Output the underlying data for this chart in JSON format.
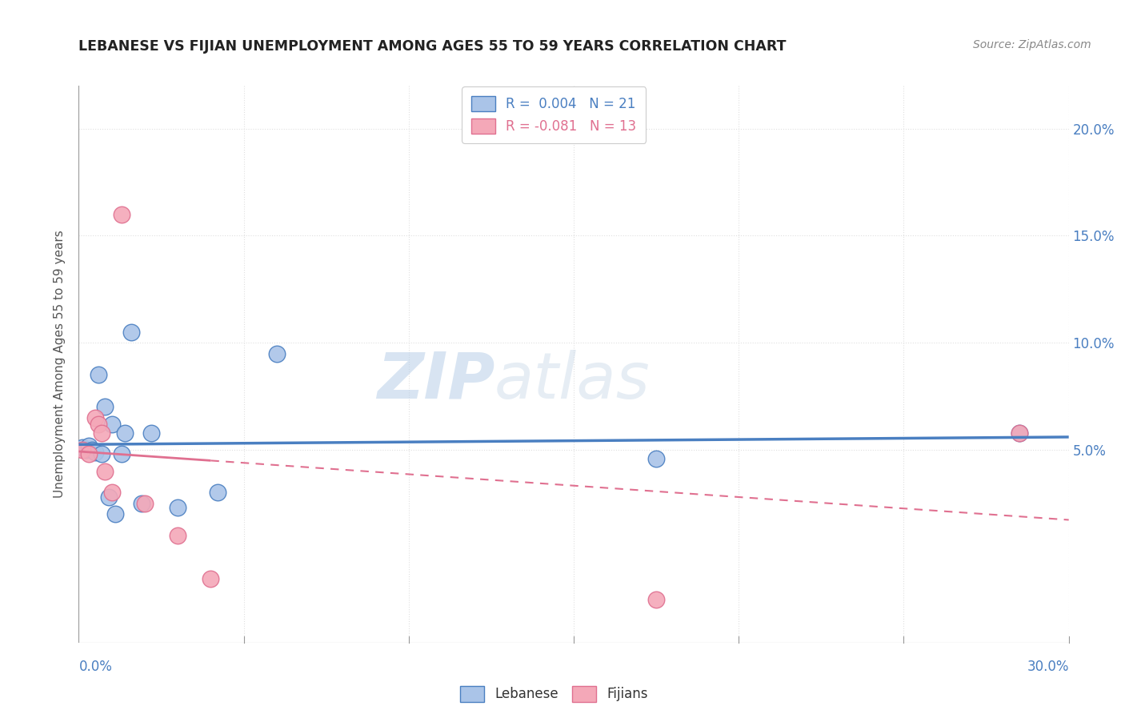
{
  "title": "LEBANESE VS FIJIAN UNEMPLOYMENT AMONG AGES 55 TO 59 YEARS CORRELATION CHART",
  "source": "Source: ZipAtlas.com",
  "ylabel": "Unemployment Among Ages 55 to 59 years",
  "xlim": [
    0.0,
    0.3
  ],
  "ylim": [
    -0.04,
    0.22
  ],
  "background_color": "#ffffff",
  "grid_color": "#e0e0e0",
  "leb_color": "#aac4e8",
  "fij_color": "#f4a8b8",
  "leb_line_color": "#4a7fc1",
  "fij_line_color": "#e07090",
  "watermark_zip": "ZIP",
  "watermark_atlas": "atlas",
  "lebanese_data_x": [
    0.001,
    0.002,
    0.003,
    0.004,
    0.005,
    0.006,
    0.007,
    0.008,
    0.009,
    0.01,
    0.011,
    0.013,
    0.014,
    0.016,
    0.019,
    0.022,
    0.03,
    0.042,
    0.06,
    0.175,
    0.285
  ],
  "lebanese_data_y": [
    0.051,
    0.05,
    0.052,
    0.05,
    0.049,
    0.085,
    0.048,
    0.07,
    0.028,
    0.062,
    0.02,
    0.048,
    0.058,
    0.105,
    0.025,
    0.058,
    0.023,
    0.03,
    0.095,
    0.046,
    0.058
  ],
  "fijian_data_x": [
    0.001,
    0.003,
    0.005,
    0.006,
    0.007,
    0.008,
    0.01,
    0.013,
    0.02,
    0.03,
    0.04,
    0.175,
    0.285
  ],
  "fijian_data_y": [
    0.05,
    0.048,
    0.065,
    0.062,
    0.058,
    0.04,
    0.03,
    0.16,
    0.025,
    0.01,
    -0.01,
    -0.02,
    0.058
  ]
}
